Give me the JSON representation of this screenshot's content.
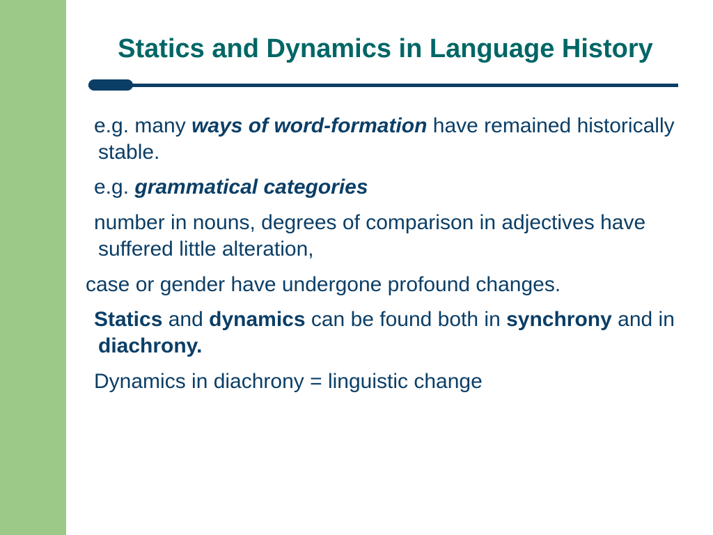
{
  "colors": {
    "sidebar": "#9cc987",
    "title": "#006666",
    "text": "#0b3e66",
    "divider": "#0b3e66",
    "background": "#ffffff"
  },
  "typography": {
    "title_fontsize": 38,
    "title_weight": "bold",
    "body_fontsize": 30,
    "font_family": "Arial"
  },
  "title": "Statics and Dynamics in Language History",
  "paragraphs": {
    "p1": {
      "lead": "e.g. many ",
      "emph": "ways of word-formation",
      "tail": " have remained historically stable."
    },
    "p2": {
      "lead": "e.g. ",
      "emph": "grammatical categories"
    },
    "p3": "number in nouns, degrees of comparison in adjectives have suffered little alteration,",
    "p4": "case or gender have undergone profound changes.",
    "p5": {
      "s1": "Statics",
      "t1": " and ",
      "s2": "dynamics",
      "t2": " can be found both in ",
      "s3": "synchrony",
      "t3": " and in ",
      "s4": "diachrony."
    },
    "p6": "Dynamics in diachrony = linguistic change"
  }
}
